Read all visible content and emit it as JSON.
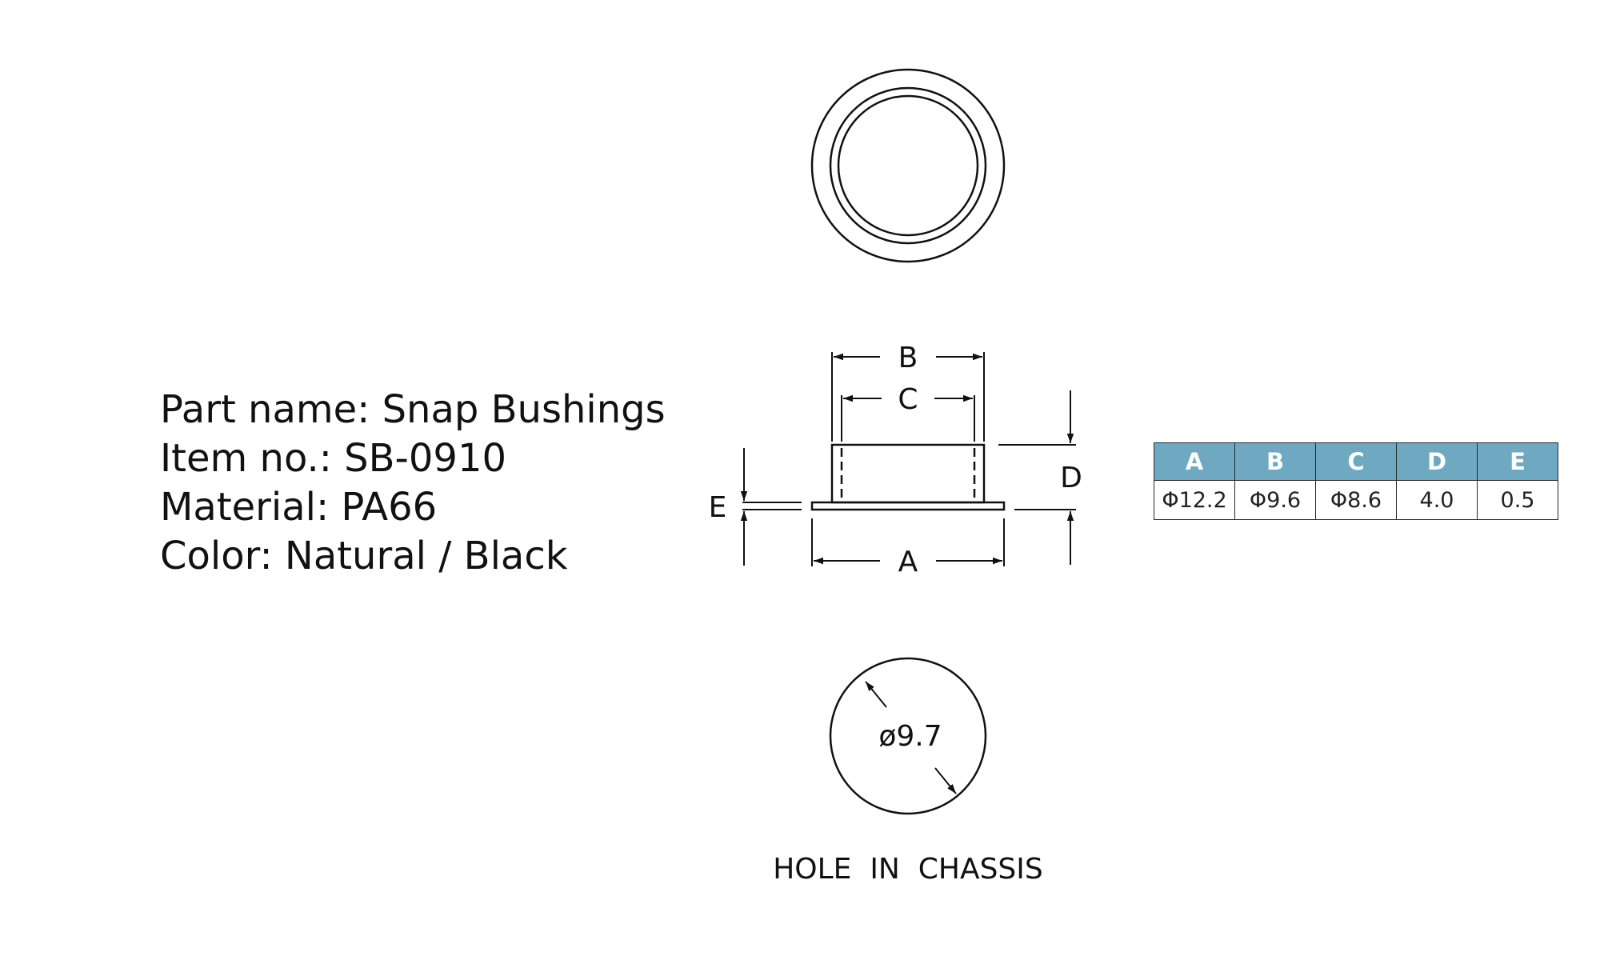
{
  "spec": {
    "part_name": "Part name: Snap Bushings",
    "item_no": "Item no.: SB-0910",
    "material": "Material: PA66",
    "color": "Color: Natural / Black"
  },
  "drawing": {
    "label_a": "A",
    "label_b": "B",
    "label_c": "C",
    "label_d": "D",
    "label_e": "E",
    "hole_diameter": "ø9.7",
    "hole_caption": "HOLE  IN  CHASSIS"
  },
  "table": {
    "headers": [
      "A",
      "B",
      "C",
      "D",
      "E"
    ],
    "values": [
      "Φ12.2",
      "Φ9.6",
      "Φ8.6",
      "4.0",
      "0.5"
    ]
  },
  "colors": {
    "table_header": "#6ea9c1"
  }
}
